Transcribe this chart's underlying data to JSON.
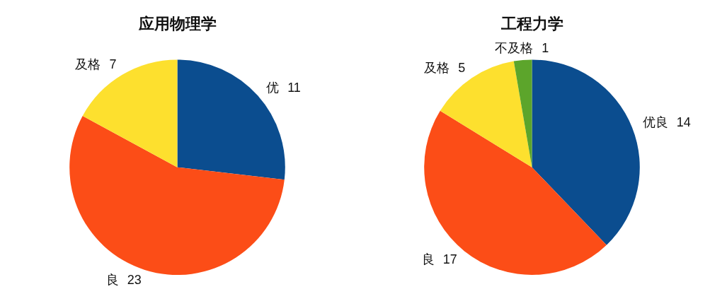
{
  "chart_data": [
    {
      "type": "pie",
      "title": "应用物理学",
      "categories": [
        "优",
        "良",
        "及格"
      ],
      "values": [
        11,
        23,
        7
      ],
      "colors": [
        "#0b4d8f",
        "#fc4d17",
        "#fde02e"
      ],
      "data_labels": true
    },
    {
      "type": "pie",
      "title": "工程力学",
      "categories": [
        "优良",
        "良",
        "及格",
        "不及格"
      ],
      "values": [
        14,
        17,
        5,
        1
      ],
      "colors": [
        "#0b4d8f",
        "#fc4d17",
        "#fde02e",
        "#5ca52b"
      ],
      "data_labels": true
    }
  ]
}
